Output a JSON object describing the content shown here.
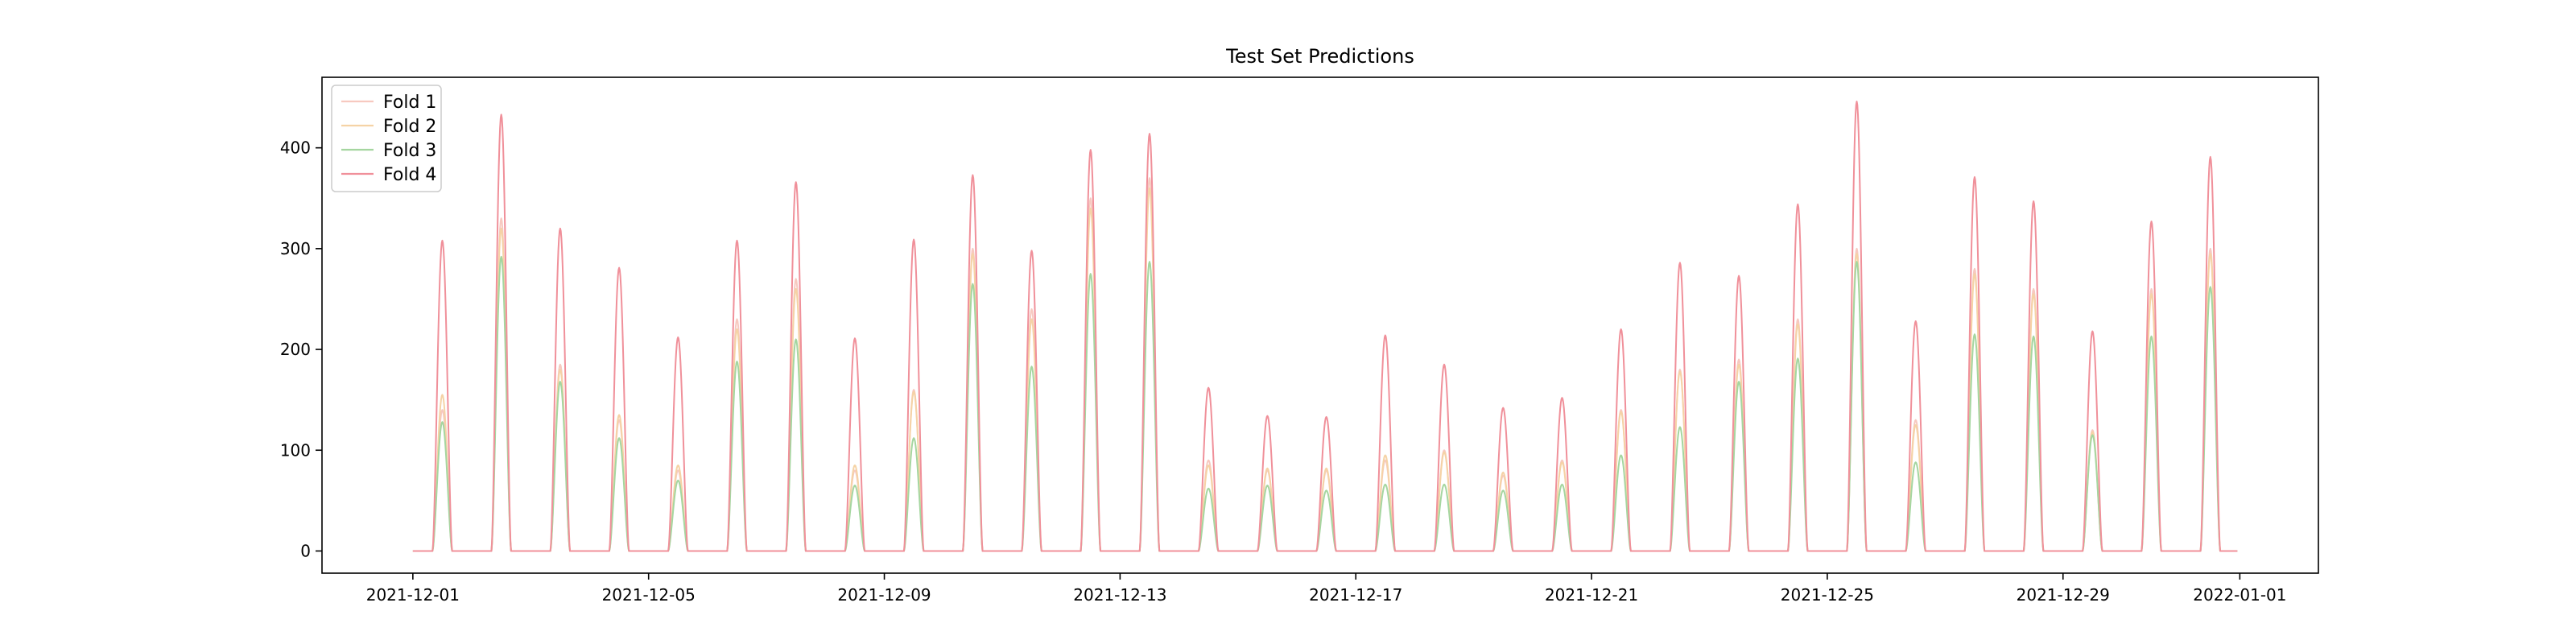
{
  "chart_data": {
    "type": "line",
    "title": "Test Set Predictions",
    "xlabel": "",
    "ylabel": "",
    "x_range": [
      "2021-11-29T11:00",
      "2022-01-02T08:00"
    ],
    "ylim": [
      -22,
      470
    ],
    "grid": false,
    "legend_position": "top-left",
    "x_ticks": [
      "2021-12-01",
      "2021-12-05",
      "2021-12-09",
      "2021-12-13",
      "2021-12-17",
      "2021-12-21",
      "2021-12-25",
      "2021-12-29",
      "2022-01-01"
    ],
    "y_ticks": [
      0,
      100,
      200,
      300,
      400
    ],
    "daily_peak_hour": 12,
    "daily_active_hours": [
      8,
      16
    ],
    "x_start": "2021-12-01",
    "x_end": "2021-12-31T23:00",
    "series": [
      {
        "name": "Fold 1",
        "color": "#f7c9c0",
        "peaks": [
          140,
          330,
          185,
          130,
          80,
          230,
          270,
          80,
          160,
          300,
          240,
          350,
          370,
          90,
          80,
          80,
          90,
          100,
          75,
          90,
          140,
          180,
          190,
          230,
          300,
          130,
          280,
          260,
          120,
          260,
          300
        ]
      },
      {
        "name": "Fold 2",
        "color": "#f5d3a6",
        "peaks": [
          155,
          320,
          180,
          135,
          85,
          220,
          260,
          85,
          158,
          295,
          230,
          340,
          360,
          85,
          82,
          82,
          95,
          98,
          78,
          88,
          138,
          178,
          185,
          225,
          295,
          125,
          275,
          255,
          118,
          255,
          295
        ]
      },
      {
        "name": "Fold 3",
        "color": "#a5d6a0",
        "peaks": [
          128,
          292,
          168,
          112,
          70,
          188,
          210,
          65,
          112,
          265,
          183,
          275,
          287,
          62,
          65,
          60,
          66,
          66,
          60,
          66,
          95,
          123,
          168,
          191,
          287,
          88,
          215,
          213,
          115,
          213,
          262
        ]
      },
      {
        "name": "Fold 4",
        "color": "#f0909a",
        "peaks": [
          308,
          433,
          320,
          281,
          212,
          308,
          366,
          211,
          309,
          373,
          298,
          398,
          414,
          162,
          134,
          133,
          214,
          185,
          142,
          152,
          220,
          286,
          273,
          344,
          446,
          228,
          371,
          347,
          218,
          327,
          391
        ]
      }
    ]
  }
}
